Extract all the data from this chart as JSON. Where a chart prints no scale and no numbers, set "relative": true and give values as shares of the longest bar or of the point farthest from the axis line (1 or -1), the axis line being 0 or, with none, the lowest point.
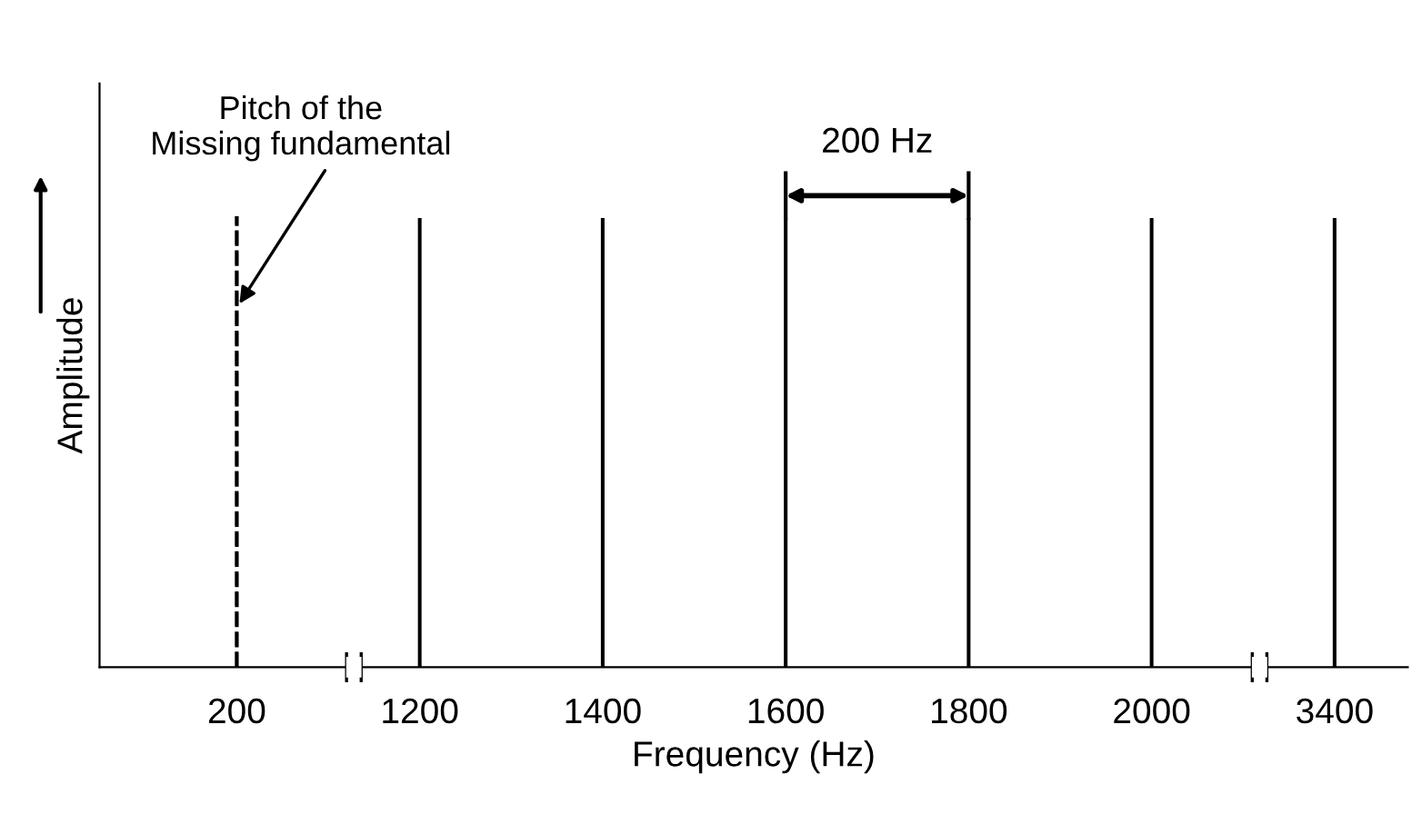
{
  "chart_data": {
    "type": "bar",
    "relative": true,
    "xlabel": "Frequency (Hz)",
    "ylabel": "Amplitude",
    "categories": [
      "200",
      "1200",
      "1400",
      "1600",
      "1800",
      "2000",
      "3400"
    ],
    "series": [
      {
        "color": "#000000",
        "line_style": "dashed",
        "values": [
          1,
          null,
          null,
          null,
          null,
          null,
          null
        ]
      },
      {
        "color": "#000000",
        "line_style": "solid",
        "values": [
          null,
          1,
          1,
          1,
          1,
          1,
          1
        ]
      }
    ],
    "annotations": [
      {
        "text": "Pitch of the\nMissing fundamental",
        "x": "200",
        "y": 0.8
      },
      "200 Hz"
    ],
    "legend": false,
    "grid": false
  }
}
